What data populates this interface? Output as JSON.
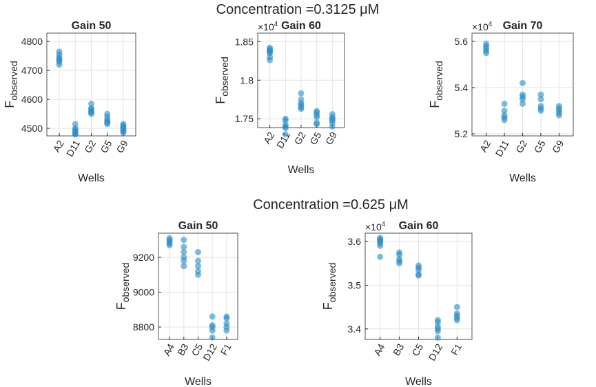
{
  "figure": {
    "titles": [
      "Concentration =0.3125 μM",
      "Concentration =0.625 μM"
    ]
  },
  "chart_data": [
    {
      "type": "strip",
      "title": "Gain 50",
      "xlabel": "Wells",
      "ylabel": "F",
      "ylabel_sub": "observed",
      "color": "#2b8cc4",
      "grid": true,
      "categories": [
        "A2",
        "D11",
        "G2",
        "G5",
        "G9"
      ],
      "values": [
        [
          4765,
          4755,
          4745,
          4740,
          4735,
          4730,
          4720
        ],
        [
          4515,
          4500,
          4495,
          4490,
          4485,
          4480,
          4480
        ],
        [
          4585,
          4570,
          4565,
          4560,
          4555,
          4550
        ],
        [
          4550,
          4540,
          4530,
          4525,
          4520,
          4515
        ],
        [
          4515,
          4510,
          4505,
          4500,
          4495,
          4490,
          4485
        ]
      ],
      "ylim": [
        4474,
        4829
      ],
      "yticks": [
        4500,
        4600,
        4700,
        4800
      ]
    },
    {
      "type": "strip",
      "title": "Gain 60",
      "xlabel": "Wells",
      "ylabel": "F",
      "ylabel_sub": "observed",
      "color": "#2b8cc4",
      "grid": true,
      "multiplier": "×10",
      "multiplier_power": "4",
      "categories": [
        "A2",
        "D11",
        "G2",
        "G5",
        "G9"
      ],
      "values": [
        [
          18420,
          18400,
          18380,
          18370,
          18350,
          18300,
          18260
        ],
        [
          17500,
          17480,
          17420,
          17400,
          17380,
          17300
        ],
        [
          17830,
          17750,
          17700,
          17680,
          17650,
          17630
        ],
        [
          17600,
          17580,
          17550,
          17520,
          17450,
          17430
        ],
        [
          17560,
          17520,
          17500,
          17480,
          17450,
          17400
        ]
      ],
      "ylim": [
        17386,
        18610
      ],
      "yticks": [
        {
          "value": 17500,
          "label": "1.75"
        },
        {
          "value": 18000,
          "label": "1.8"
        },
        {
          "value": 18500,
          "label": "1.85"
        }
      ]
    },
    {
      "type": "strip",
      "title": "Gain 70",
      "xlabel": "Wells",
      "ylabel": "F",
      "ylabel_sub": "observed",
      "color": "#2b8cc4",
      "grid": true,
      "multiplier": "×10",
      "multiplier_power": "4",
      "categories": [
        "A2",
        "D11",
        "G2",
        "G5",
        "G9"
      ],
      "values": [
        [
          55900,
          55800,
          55700,
          55600,
          55500
        ],
        [
          53300,
          53000,
          52800,
          52700,
          52600
        ],
        [
          54200,
          53700,
          53600,
          53500,
          53300
        ],
        [
          53700,
          53500,
          53200,
          53100,
          53000
        ],
        [
          53200,
          53100,
          53000,
          52900,
          52800
        ]
      ],
      "ylim": [
        51910,
        56360
      ],
      "yticks": [
        {
          "value": 52000,
          "label": "5.2"
        },
        {
          "value": 54000,
          "label": "5.4"
        },
        {
          "value": 56000,
          "label": "5.6"
        }
      ]
    },
    {
      "type": "strip",
      "title": "Gain 50",
      "xlabel": "Wells",
      "ylabel": "F",
      "ylabel_sub": "observed",
      "color": "#2b8cc4",
      "grid": true,
      "categories": [
        "A4",
        "B3",
        "C5",
        "D12",
        "F1"
      ],
      "values": [
        [
          9310,
          9300,
          9290,
          9280,
          9270
        ],
        [
          9300,
          9260,
          9230,
          9200,
          9180,
          9150
        ],
        [
          9230,
          9180,
          9150,
          9120,
          9100
        ],
        [
          8860,
          8810,
          8800,
          8780,
          8740
        ],
        [
          8860,
          8850,
          8820,
          8800,
          8780
        ]
      ],
      "ylim": [
        8729,
        9339
      ],
      "yticks": [
        8800,
        9000,
        9200
      ]
    },
    {
      "type": "strip",
      "title": "Gain 60",
      "xlabel": "Wells",
      "ylabel": "F",
      "ylabel_sub": "observed",
      "color": "#2b8cc4",
      "grid": true,
      "multiplier": "×10",
      "multiplier_power": "4",
      "categories": [
        "A4",
        "B3",
        "C5",
        "D12",
        "F1"
      ],
      "values": [
        [
          36080,
          36050,
          36020,
          36000,
          35950,
          35900,
          35650
        ],
        [
          35750,
          35700,
          35600,
          35550,
          35500
        ],
        [
          35450,
          35400,
          35350,
          35250,
          35220
        ],
        [
          34200,
          34150,
          34050,
          34000,
          33950,
          33800
        ],
        [
          34500,
          34350,
          34300,
          34250,
          34200
        ]
      ],
      "ylim": [
        33760,
        36190
      ],
      "yticks": [
        {
          "value": 34000,
          "label": "3.4"
        },
        {
          "value": 35000,
          "label": "3.5"
        },
        {
          "value": 36000,
          "label": "3.6"
        }
      ]
    }
  ]
}
